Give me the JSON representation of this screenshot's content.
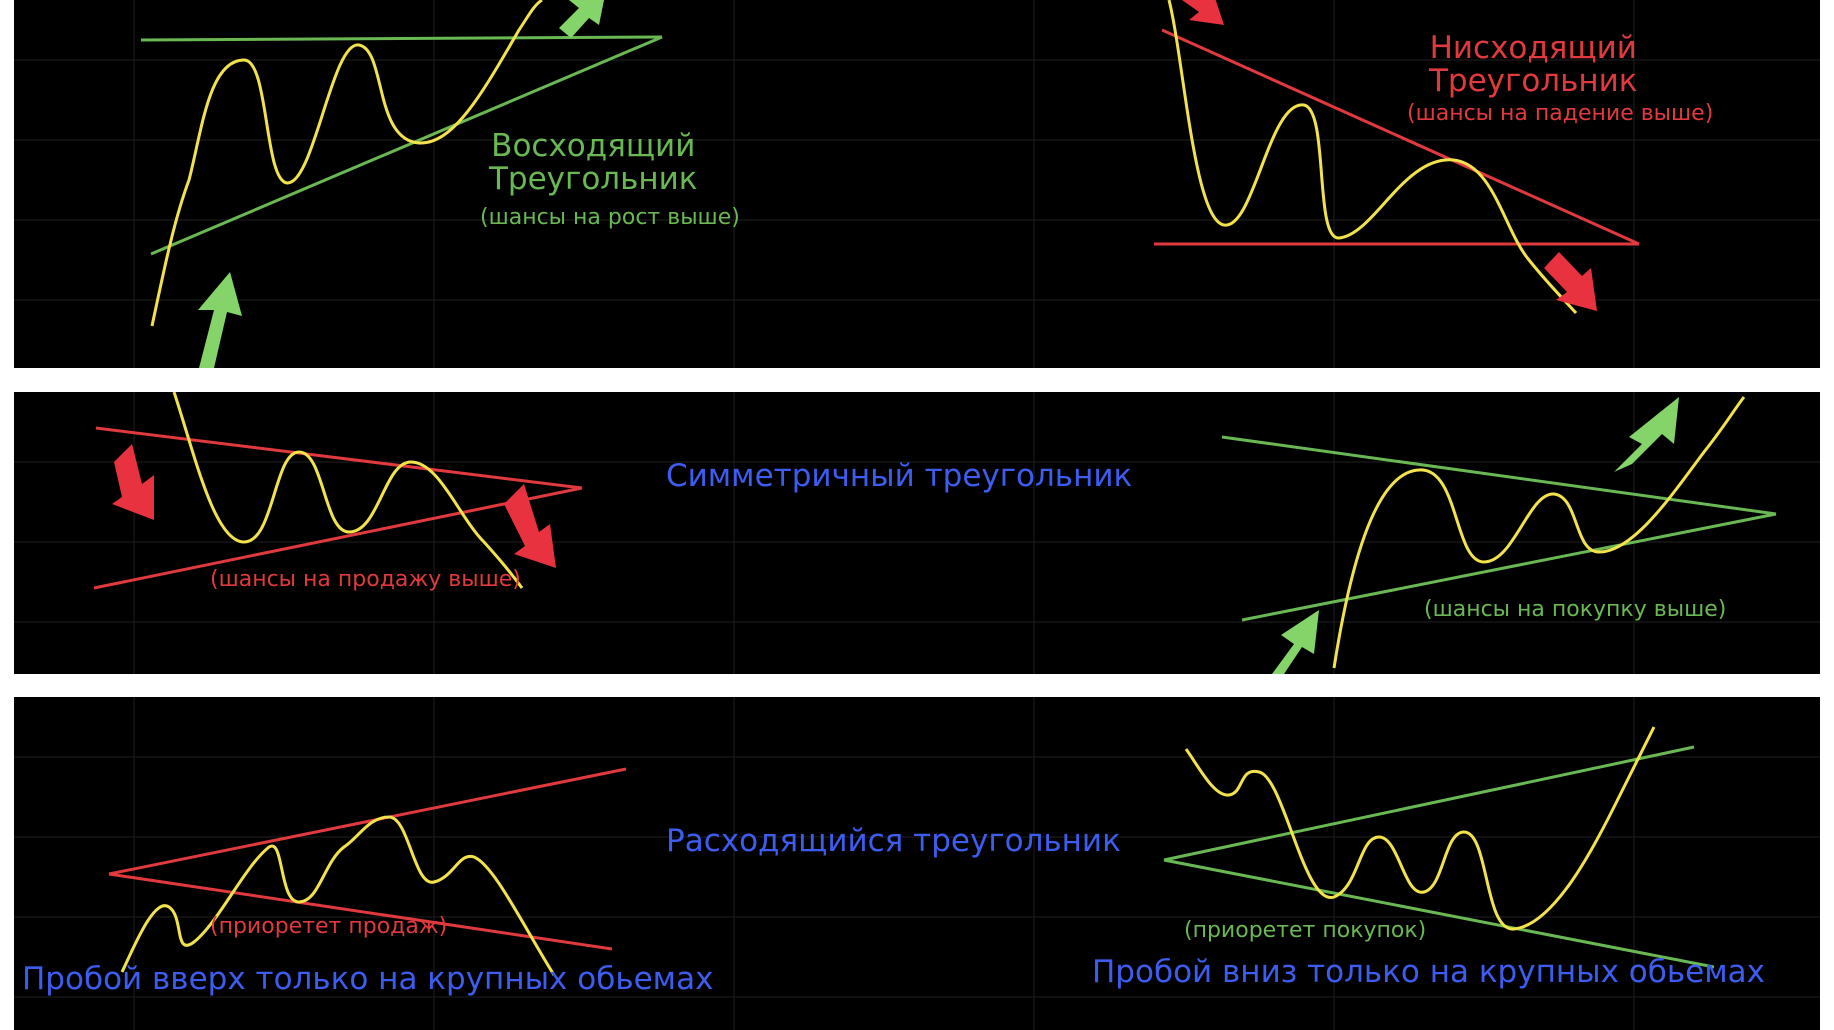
{
  "colors": {
    "background": "#000000",
    "price_line": "#f3e34a",
    "green": "#69b853",
    "red": "#e0393e",
    "blue": "#3d5cf0",
    "arrow_green": "#84d46a",
    "arrow_red": "#e8323f"
  },
  "panels": [
    {
      "name": "top",
      "patterns": [
        {
          "name": "ascending-triangle",
          "title_line1": "Восходящий",
          "title_line2": "Треугольник",
          "note": "(шансы на рост выше)",
          "breakout": "up"
        },
        {
          "name": "descending-triangle",
          "title_line1": "Нисходящий",
          "title_line2": "Треугольник",
          "note": "(шансы на падение выше)",
          "breakout": "down"
        }
      ]
    },
    {
      "name": "middle",
      "title": "Симметричный треугольник",
      "patterns": [
        {
          "name": "symmetric-triangle-bearish",
          "note": "(шансы на продажу выше)",
          "breakout": "down"
        },
        {
          "name": "symmetric-triangle-bullish",
          "note": "(шансы на покупку выше)",
          "breakout": "up"
        }
      ]
    },
    {
      "name": "bottom",
      "title": "Расходящийся треугольник",
      "patterns": [
        {
          "name": "broadening-triangle-sell",
          "note": "(приоретет продаж)",
          "caption": "Пробой вверх только на крупных обьемах"
        },
        {
          "name": "broadening-triangle-buy",
          "note": "(приоретет покупок)",
          "caption": "Пробой вниз только на крупных обьемах"
        }
      ]
    }
  ]
}
